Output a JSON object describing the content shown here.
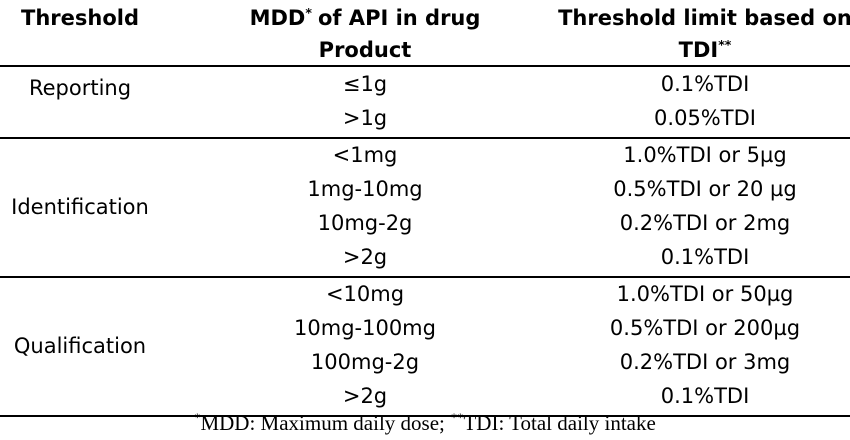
{
  "table": {
    "header": [
      {
        "text": "Threshold"
      },
      {
        "text": "MDD",
        "sup": "*",
        "after": "of API in drug Product"
      },
      {
        "text": "Threshold limit based on TDI",
        "sup": "**"
      }
    ],
    "groups": [
      {
        "label": "Reporting",
        "rows": [
          [
            "≤1g",
            "0.1%TDI"
          ],
          [
            ">1g",
            "0.05%TDI"
          ]
        ]
      },
      {
        "label": "Identification",
        "rows": [
          [
            "<1mg",
            "1.0%TDI or 5µg"
          ],
          [
            "1mg-10mg",
            "0.5%TDI or 20 µg"
          ],
          [
            "10mg-2g",
            "0.2%TDI or 2mg"
          ],
          [
            ">2g",
            "0.1%TDI"
          ]
        ]
      },
      {
        "label": "Qualification",
        "rows": [
          [
            "<10mg",
            "1.0%TDI or 50µg"
          ],
          [
            "10mg-100mg",
            "0.5%TDI or 200µg"
          ],
          [
            "100mg-2g",
            "0.2%TDI or 3mg"
          ],
          [
            ">2g",
            "0.1%TDI"
          ]
        ]
      }
    ],
    "footnote": [
      {
        "sup": "*",
        "text": "MDD: Maximum daily dose;"
      },
      {
        "sup": "**",
        "text": "TDI: Total daily intake"
      }
    ]
  }
}
